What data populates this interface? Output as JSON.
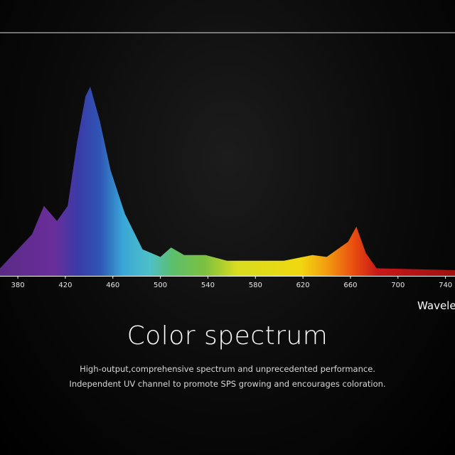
{
  "chart_data": {
    "type": "area",
    "title": "Color spectrum",
    "subtitle": [
      "High-output,comprehensive spectrum and unprecedented performance.",
      "Independent UV channel to promote SPS growing and encourages coloration."
    ],
    "x_label": "Wavelength",
    "x": [
      365,
      380,
      392,
      402,
      413,
      422,
      430,
      437,
      441,
      449,
      458,
      470,
      485,
      500,
      509,
      520,
      538,
      556,
      604,
      628,
      640,
      658,
      665,
      673,
      682,
      748
    ],
    "values": [
      4,
      14,
      22,
      37,
      29,
      37,
      71,
      95,
      100,
      82,
      56,
      33,
      14,
      10,
      15,
      11,
      11,
      8,
      8,
      11,
      10,
      18,
      26,
      12,
      4,
      3
    ],
    "xlim": [
      365,
      748
    ],
    "ylim": [
      0,
      100
    ],
    "xticks": [
      380,
      420,
      460,
      500,
      540,
      580,
      620,
      660,
      700,
      740
    ]
  }
}
